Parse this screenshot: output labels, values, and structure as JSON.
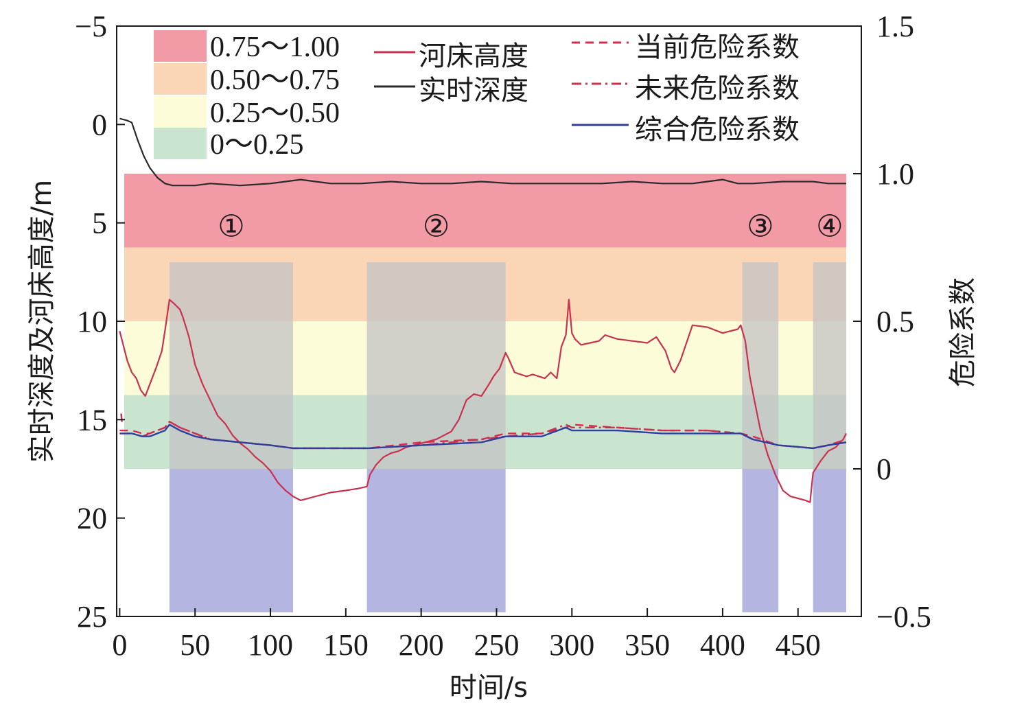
{
  "chart_data": {
    "type": "line",
    "xlabel": "时间/s",
    "ylabel_left": "实时深度及河床高度/m",
    "ylabel_right": "危险系数",
    "x_ticks": [
      "0",
      "50",
      "100",
      "150",
      "200",
      "250",
      "300",
      "350",
      "400",
      "450"
    ],
    "y_left_ticks": [
      "−5",
      "0",
      "5",
      "10",
      "15",
      "20",
      "25"
    ],
    "y_right_ticks": [
      "1.5",
      "1.0",
      "0.5",
      "0",
      "−0.5"
    ],
    "xlim": [
      -2,
      492
    ],
    "ylim_left_inverted": [
      -5,
      25
    ],
    "ylim_right": [
      -0.5,
      1.5
    ],
    "grid": false,
    "risk_bands": [
      {
        "label": "0.75～1.00",
        "from": 0.75,
        "to": 1.0,
        "color": "#f29aa6"
      },
      {
        "label": "0.50～0.75",
        "from": 0.5,
        "to": 0.75,
        "color": "#fbd6b6"
      },
      {
        "label": "0.25～0.50",
        "from": 0.25,
        "to": 0.5,
        "color": "#fcfcd9"
      },
      {
        "label": "0～0.25",
        "from": 0.0,
        "to": 0.25,
        "color": "#c9e4cf"
      }
    ],
    "band_x_range": [
      3,
      482
    ],
    "regions": [
      {
        "label": "①",
        "x_start": 33,
        "x_end": 115
      },
      {
        "label": "②",
        "x_start": 164,
        "x_end": 256
      },
      {
        "label": "③",
        "x_start": 413,
        "x_end": 437
      },
      {
        "label": "④",
        "x_start": 460,
        "x_end": 482
      }
    ],
    "region_colors": {
      "upper": "#c4c4c4",
      "lower": "#b4b5e1"
    },
    "series": [
      {
        "name": "河床高度",
        "axis": "left",
        "style": "solid",
        "color": "#c8324e",
        "x": [
          0,
          5,
          8,
          11,
          14,
          17,
          20,
          24,
          28,
          30,
          33,
          36,
          40,
          42,
          46,
          50,
          55,
          60,
          65,
          70,
          75,
          80,
          85,
          90,
          95,
          100,
          105,
          110,
          115,
          120,
          130,
          140,
          150,
          158,
          164,
          166,
          170,
          175,
          180,
          185,
          190,
          195,
          200,
          205,
          210,
          215,
          220,
          225,
          230,
          235,
          240,
          245,
          248,
          252,
          256,
          258,
          262,
          266,
          270,
          274,
          278,
          282,
          286,
          290,
          293,
          296,
          298,
          300,
          302,
          306,
          312,
          318,
          322,
          330,
          340,
          350,
          356,
          362,
          366,
          368,
          372,
          380,
          390,
          400,
          405,
          410,
          412,
          415,
          418,
          421,
          425,
          430,
          435,
          440,
          445,
          450,
          455,
          458,
          460,
          465,
          470,
          475,
          480,
          482
        ],
        "y": [
          10.5,
          12.0,
          12.6,
          12.9,
          13.5,
          13.8,
          13.2,
          12.4,
          11.5,
          10.5,
          8.9,
          9.1,
          9.4,
          9.8,
          10.8,
          12.2,
          13.2,
          14.0,
          14.8,
          15.2,
          15.8,
          16.2,
          16.5,
          16.9,
          17.2,
          17.6,
          18.2,
          18.6,
          18.9,
          19.1,
          18.9,
          18.7,
          18.6,
          18.5,
          18.4,
          17.8,
          17.3,
          16.9,
          16.7,
          16.6,
          16.4,
          16.3,
          16.2,
          16.1,
          16.0,
          15.8,
          15.6,
          15.0,
          14.0,
          13.7,
          13.8,
          13.2,
          12.8,
          12.4,
          11.6,
          11.9,
          12.6,
          12.7,
          12.8,
          12.7,
          12.8,
          12.9,
          12.6,
          12.9,
          11.3,
          10.7,
          8.9,
          10.6,
          10.9,
          11.2,
          11.1,
          11.0,
          10.7,
          10.9,
          11.0,
          11.1,
          10.8,
          11.5,
          12.4,
          12.6,
          12.0,
          10.2,
          10.3,
          10.6,
          10.5,
          10.4,
          10.2,
          11.0,
          12.8,
          14.0,
          15.5,
          16.8,
          17.8,
          18.6,
          18.9,
          19.0,
          19.1,
          19.2,
          17.7,
          17.1,
          16.6,
          16.4,
          16.0,
          15.7
        ],
        "extra_points": [
          {
            "x": 1,
            "y": 14.9
          }
        ]
      },
      {
        "name": "实时深度",
        "axis": "left",
        "style": "solid",
        "color": "#2a2a2a",
        "x": [
          0,
          5,
          8,
          12,
          16,
          20,
          25,
          30,
          35,
          40,
          50,
          60,
          80,
          100,
          110,
          120,
          130,
          140,
          160,
          180,
          200,
          220,
          240,
          260,
          280,
          300,
          320,
          340,
          360,
          380,
          400,
          410,
          420,
          440,
          460,
          470,
          482
        ],
        "y": [
          -0.3,
          -0.2,
          -0.1,
          0.8,
          1.6,
          2.2,
          2.7,
          3.0,
          3.1,
          3.1,
          3.1,
          3.0,
          3.1,
          3.0,
          2.9,
          2.8,
          2.9,
          3.0,
          3.0,
          2.9,
          3.0,
          3.0,
          2.9,
          3.0,
          3.0,
          3.0,
          3.0,
          2.9,
          3.0,
          3.0,
          2.8,
          3.0,
          3.0,
          2.9,
          2.9,
          3.0,
          3.0
        ]
      },
      {
        "name": "当前危险系数",
        "axis": "right",
        "style": "dashed",
        "color": "#d92b4d",
        "x": [
          0,
          8,
          15,
          20,
          25,
          30,
          33,
          40,
          50,
          60,
          80,
          100,
          115,
          140,
          165,
          200,
          240,
          256,
          280,
          296,
          300,
          330,
          360,
          390,
          412,
          420,
          437,
          460,
          470,
          482
        ],
        "y": [
          0.13,
          0.13,
          0.12,
          0.12,
          0.13,
          0.14,
          0.16,
          0.14,
          0.12,
          0.1,
          0.09,
          0.08,
          0.07,
          0.07,
          0.07,
          0.09,
          0.1,
          0.12,
          0.12,
          0.14,
          0.15,
          0.14,
          0.13,
          0.13,
          0.12,
          0.11,
          0.08,
          0.07,
          0.08,
          0.1
        ]
      },
      {
        "name": "未来危险系数",
        "axis": "right",
        "style": "dashdot",
        "color": "#c8324e",
        "x": [
          0,
          8,
          15,
          20,
          25,
          30,
          33,
          40,
          50,
          60,
          80,
          100,
          115,
          140,
          165,
          200,
          240,
          256,
          280,
          296,
          300,
          330,
          360,
          390,
          412,
          420,
          437,
          460,
          470,
          482
        ],
        "y": [
          0.12,
          0.12,
          0.11,
          0.12,
          0.13,
          0.14,
          0.16,
          0.14,
          0.12,
          0.1,
          0.09,
          0.08,
          0.07,
          0.07,
          0.07,
          0.08,
          0.1,
          0.11,
          0.12,
          0.15,
          0.14,
          0.14,
          0.13,
          0.13,
          0.12,
          0.1,
          0.08,
          0.07,
          0.08,
          0.09
        ]
      },
      {
        "name": "综合危险系数",
        "axis": "right",
        "style": "solid",
        "color": "#2f3f9e",
        "x": [
          0,
          8,
          15,
          20,
          25,
          30,
          33,
          40,
          50,
          60,
          80,
          100,
          115,
          140,
          165,
          200,
          240,
          256,
          280,
          296,
          300,
          330,
          360,
          390,
          412,
          420,
          437,
          460,
          470,
          482
        ],
        "y": [
          0.12,
          0.12,
          0.11,
          0.11,
          0.12,
          0.13,
          0.15,
          0.13,
          0.11,
          0.1,
          0.09,
          0.08,
          0.07,
          0.07,
          0.07,
          0.08,
          0.09,
          0.11,
          0.11,
          0.14,
          0.13,
          0.13,
          0.12,
          0.12,
          0.12,
          0.1,
          0.08,
          0.07,
          0.08,
          0.09
        ]
      }
    ]
  }
}
